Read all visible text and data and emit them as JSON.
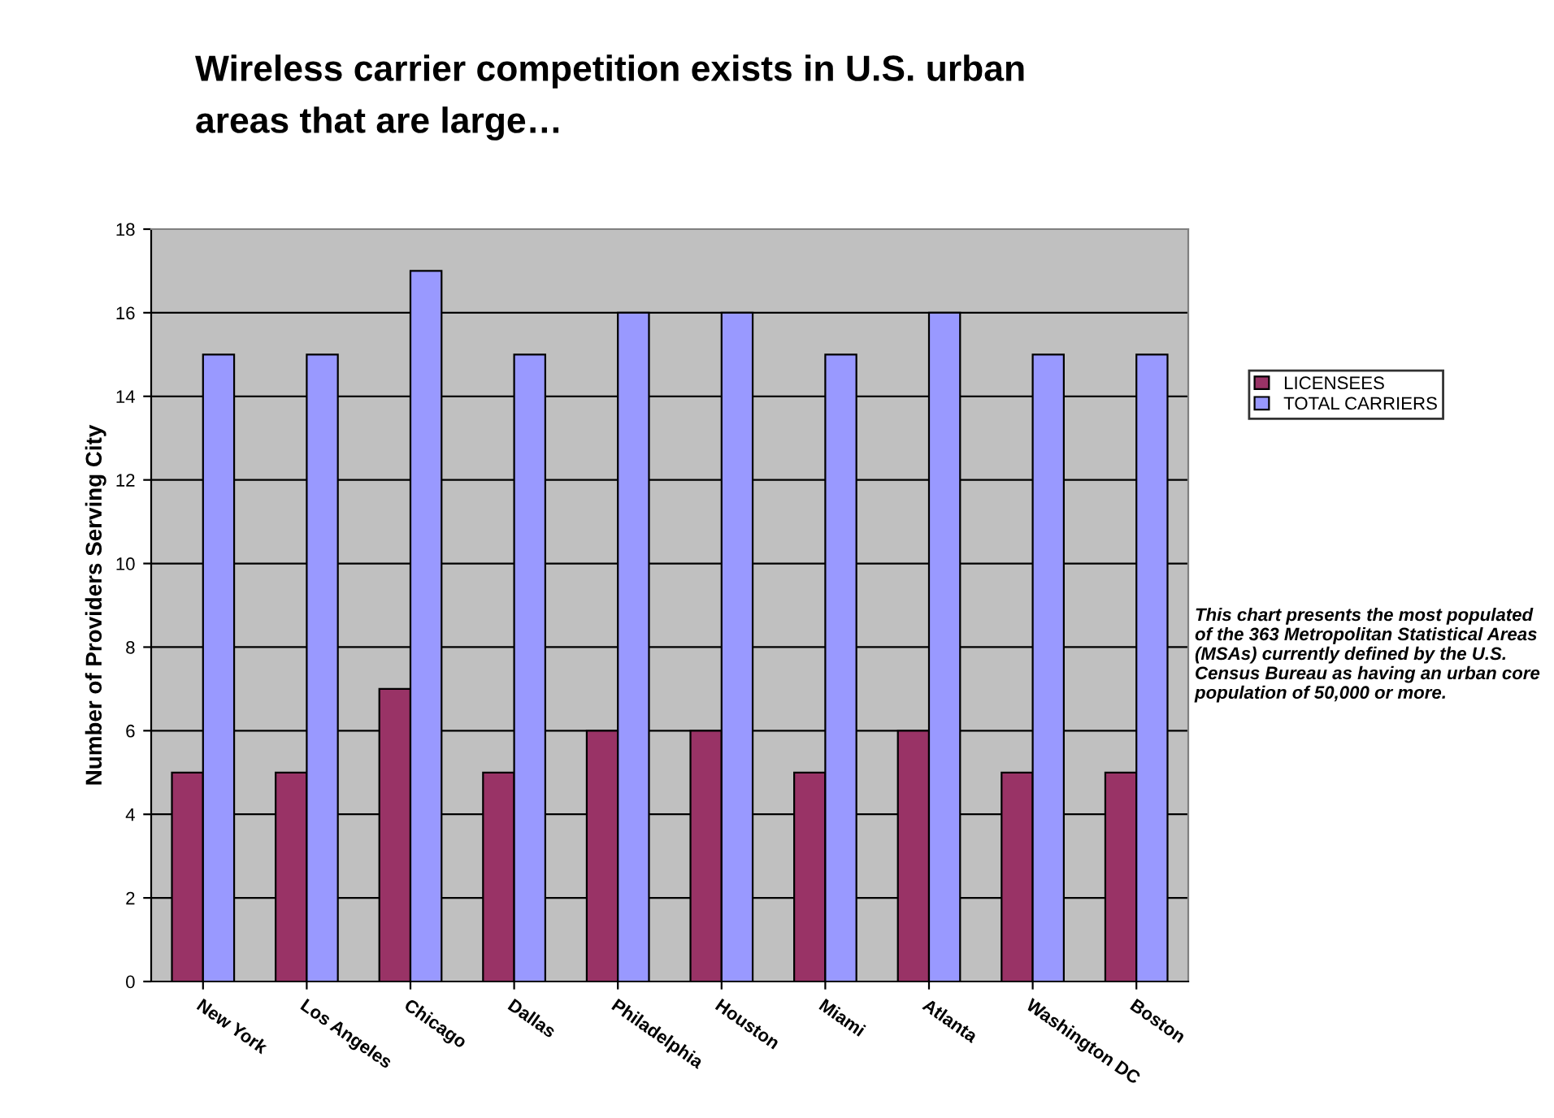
{
  "chart_data": {
    "type": "bar",
    "title": "Wireless carrier competition exists in U.S. urban\nareas that are large…",
    "ylabel": "Number of Providers Serving City",
    "categories": [
      "New York",
      "Los Angeles",
      "Chicago",
      "Dallas",
      "Philadelphia",
      "Houston",
      "Miami",
      "Atlanta",
      "Washington DC",
      "Boston"
    ],
    "series": [
      {
        "name": "LICENSEES",
        "color": "#993366",
        "values": [
          5,
          5,
          7,
          5,
          6,
          6,
          5,
          6,
          5,
          5
        ]
      },
      {
        "name": "TOTAL CARRIERS",
        "color": "#9999ff",
        "values": [
          15,
          15,
          17,
          15,
          16,
          16,
          15,
          16,
          15,
          15
        ]
      }
    ],
    "ylim": [
      0,
      18
    ],
    "yticks": [
      0,
      2,
      4,
      6,
      8,
      10,
      12,
      14,
      16,
      18
    ],
    "grid": "y",
    "legend": "right",
    "annotations": [
      "This chart presents the most populated of the 363 Metropolitan Statistical Areas (MSAs) currently defined by the U.S. Census Bureau as having an urban core population of 50,000 or more."
    ]
  }
}
